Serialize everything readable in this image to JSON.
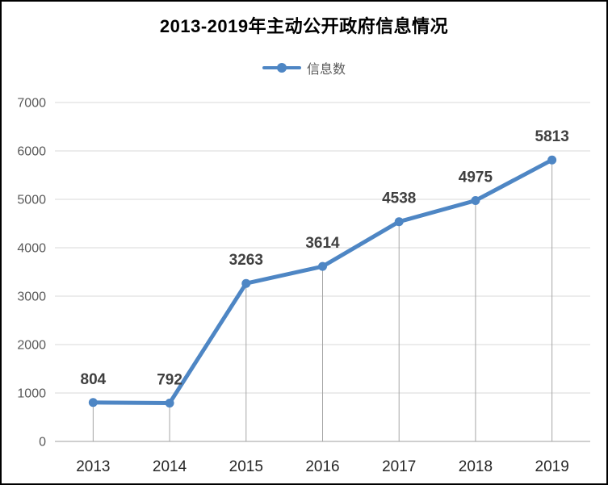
{
  "chart": {
    "title": "2013-2019年主动公开政府信息情况",
    "legend_label": "信息数"
  },
  "chart_data": {
    "type": "line",
    "title": "2013-2019年主动公开政府信息情况",
    "categories": [
      "2013",
      "2014",
      "2015",
      "2016",
      "2017",
      "2018",
      "2019"
    ],
    "series": [
      {
        "name": "信息数",
        "values": [
          804,
          792,
          3263,
          3614,
          4538,
          4975,
          5813
        ]
      }
    ],
    "xlabel": "",
    "ylabel": "",
    "ylim": [
      0,
      7000
    ],
    "ytick_step": 1000,
    "yticks": [
      0,
      1000,
      2000,
      3000,
      4000,
      5000,
      6000,
      7000
    ],
    "grid": true,
    "legend_position": "top-center",
    "data_labels": true,
    "drop_lines": true,
    "marker": "circle",
    "colors": {
      "line": "#4E86C4",
      "marker": "#4E86C4",
      "gridline": "#D9D9D9",
      "axis_line": "#BFBFBF",
      "drop_line": "#A6A6A6",
      "title_text": "#000000",
      "y_tick_text": "#595959",
      "x_tick_text": "#262626",
      "data_label_text": "#404040",
      "legend_text": "#595959",
      "background": "#FFFFFF",
      "frame_border": "#000000"
    }
  }
}
